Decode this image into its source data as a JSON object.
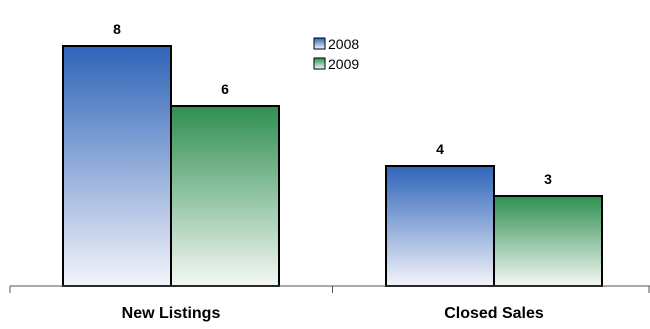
{
  "chart_data": {
    "type": "bar",
    "categories": [
      "New Listings",
      "Closed Sales"
    ],
    "series": [
      {
        "name": "2008",
        "values": [
          8,
          4
        ]
      },
      {
        "name": "2009",
        "values": [
          6,
          3
        ]
      }
    ],
    "title": "",
    "xlabel": "",
    "ylabel": "",
    "ylim": [
      0,
      8
    ],
    "grid": false,
    "legend_position": "top-center",
    "colors": {
      "2008": {
        "top": "#2e64b8",
        "bottom": "#f4f4fa"
      },
      "2009": {
        "top": "#2f8f52",
        "bottom": "#f4f8f4"
      },
      "border": "#000000"
    }
  }
}
